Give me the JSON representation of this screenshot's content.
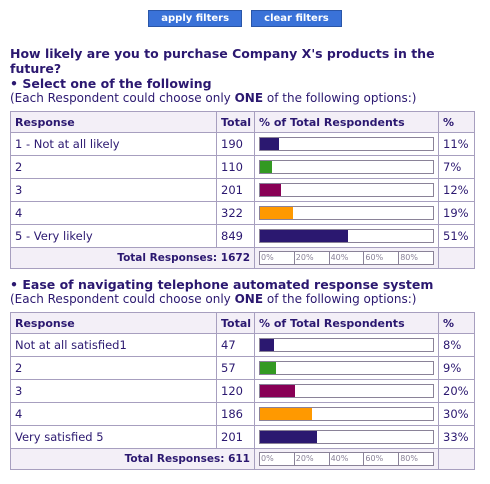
{
  "toolbar": {
    "apply_label": "apply filters",
    "clear_label": "clear filters"
  },
  "headers": {
    "response": "Response",
    "total": "Total",
    "pct_of_total": "% of Total Respondents",
    "pct": "%"
  },
  "scale_ticks": [
    "0%",
    "20%",
    "40%",
    "60%",
    "80%"
  ],
  "colors": [
    "#2b1870",
    "#339922",
    "#880055",
    "#ff9900",
    "#2b1870"
  ],
  "questions": [
    {
      "title": "How likely are you to purchase Company X's products in the future?",
      "subtitle": "• Select one of the following",
      "instruction_pre": "(Each Respondent could choose only ",
      "instruction_bold": "ONE",
      "instruction_post": " of the following options:)",
      "rows": [
        {
          "response": "1 - Not at all likely",
          "total": "190",
          "pct": "11%",
          "value": 11
        },
        {
          "response": "2",
          "total": "110",
          "pct": "7%",
          "value": 7
        },
        {
          "response": "3",
          "total": "201",
          "pct": "12%",
          "value": 12
        },
        {
          "response": "4",
          "total": "322",
          "pct": "19%",
          "value": 19
        },
        {
          "response": "5 - Very likely",
          "total": "849",
          "pct": "51%",
          "value": 51
        }
      ],
      "total_label": "Total Responses: 1672"
    },
    {
      "title": "",
      "subtitle": "• Ease of navigating telephone automated response system",
      "instruction_pre": "(Each Respondent could choose only ",
      "instruction_bold": "ONE",
      "instruction_post": " of the following options:)",
      "rows": [
        {
          "response": "Not at all satisfied1",
          "total": "47",
          "pct": "8%",
          "value": 8
        },
        {
          "response": "2",
          "total": "57",
          "pct": "9%",
          "value": 9
        },
        {
          "response": "3",
          "total": "120",
          "pct": "20%",
          "value": 20
        },
        {
          "response": "4",
          "total": "186",
          "pct": "30%",
          "value": 30
        },
        {
          "response": "Very satisfied 5",
          "total": "201",
          "pct": "33%",
          "value": 33
        }
      ],
      "total_label": "Total Responses: 611"
    }
  ]
}
